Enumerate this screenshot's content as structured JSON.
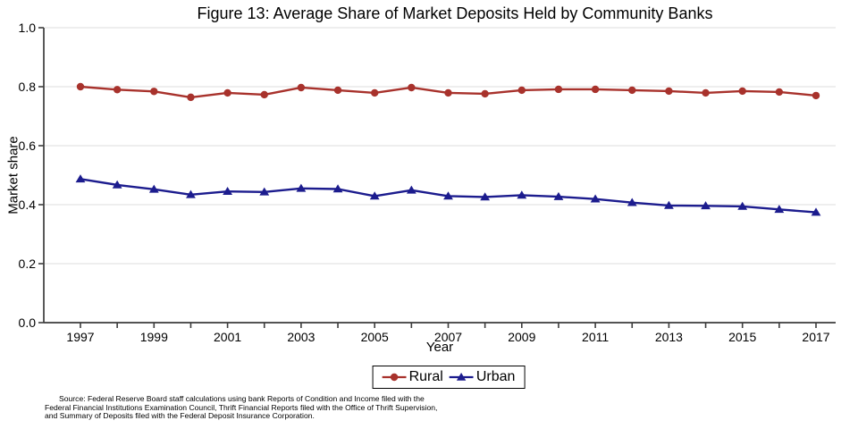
{
  "chart_data": {
    "type": "line",
    "title": "Figure 13: Average Share of Market Deposits Held by Community Banks",
    "xlabel": "Year",
    "ylabel": "Market share",
    "x": [
      1997,
      1998,
      1999,
      2000,
      2001,
      2002,
      2003,
      2004,
      2005,
      2006,
      2007,
      2008,
      2009,
      2010,
      2011,
      2012,
      2013,
      2014,
      2015,
      2016,
      2017
    ],
    "x_labeled_ticks": [
      1997,
      1999,
      2001,
      2003,
      2005,
      2007,
      2009,
      2011,
      2013,
      2015,
      2017
    ],
    "ylim": [
      0.0,
      1.0
    ],
    "yticks": [
      0.0,
      0.2,
      0.4,
      0.6,
      0.8,
      1.0
    ],
    "ytick_labels": [
      "0.0",
      "0.2",
      "0.4",
      "0.6",
      "0.8",
      "1.0"
    ],
    "grid": "horizontal gridlines at y ticks",
    "legend_position": "bottom",
    "series": [
      {
        "name": "Rural",
        "marker": "circle",
        "color": "#a8322c",
        "values": [
          0.8,
          0.79,
          0.784,
          0.764,
          0.779,
          0.773,
          0.797,
          0.788,
          0.779,
          0.797,
          0.779,
          0.776,
          0.788,
          0.791,
          0.791,
          0.788,
          0.785,
          0.779,
          0.785,
          0.782,
          0.77
        ]
      },
      {
        "name": "Urban",
        "marker": "triangle",
        "color": "#1c1c8e",
        "values": [
          0.487,
          0.467,
          0.452,
          0.434,
          0.445,
          0.443,
          0.455,
          0.453,
          0.429,
          0.449,
          0.429,
          0.426,
          0.432,
          0.427,
          0.419,
          0.407,
          0.397,
          0.396,
          0.394,
          0.384,
          0.374
        ]
      }
    ],
    "axis_color": "#3c3c3c",
    "gridline_color": "#e4e4e4"
  },
  "source_note": {
    "line1": "Source: Federal Reserve Board staff calculations using bank Reports of Condition and Income filed with the",
    "line2": "Federal Financial Institutions Examination Council, Thrift Financial Reports filed with the Office of Thrift Supervision,",
    "line3": "and Summary of Deposits filed with the Federal Deposit Insurance Corporation."
  }
}
